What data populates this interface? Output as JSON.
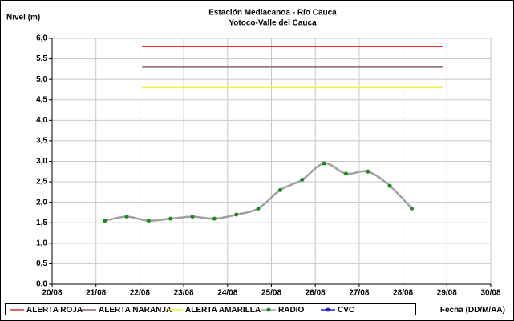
{
  "chart_data": {
    "type": "line",
    "title": "Estación Mediacanoa - Río Cauca",
    "subtitle": "Yotoco-Valle del Cauca",
    "y_label": "Nivel (m)",
    "x_label": "Fecha (DD/M/AA)",
    "xlim": [
      20,
      30
    ],
    "xticks": [
      {
        "value": 20,
        "label": "20/08"
      },
      {
        "value": 21,
        "label": "21/08"
      },
      {
        "value": 22,
        "label": "22/08"
      },
      {
        "value": 23,
        "label": "23/08"
      },
      {
        "value": 24,
        "label": "24/08"
      },
      {
        "value": 25,
        "label": "25/08"
      },
      {
        "value": 26,
        "label": "26/08"
      },
      {
        "value": 27,
        "label": "27/08"
      },
      {
        "value": 28,
        "label": "28/08"
      },
      {
        "value": 29,
        "label": "29/08"
      },
      {
        "value": 30,
        "label": "30/08"
      }
    ],
    "ylim": [
      0,
      6
    ],
    "yticks": [
      {
        "value": 0,
        "label": "0,0"
      },
      {
        "value": 0.5,
        "label": "0,5"
      },
      {
        "value": 1,
        "label": "1,0"
      },
      {
        "value": 1.5,
        "label": "1,5"
      },
      {
        "value": 2,
        "label": "2,0"
      },
      {
        "value": 2.5,
        "label": "2,5"
      },
      {
        "value": 3,
        "label": "3,0"
      },
      {
        "value": 3.5,
        "label": "3,5"
      },
      {
        "value": 4,
        "label": "4,0"
      },
      {
        "value": 4.5,
        "label": "4,5"
      },
      {
        "value": 5,
        "label": "5,0"
      },
      {
        "value": 5.5,
        "label": "5,5"
      },
      {
        "value": 6,
        "label": "6,0"
      }
    ],
    "grid": true,
    "legend": "bottom",
    "series": [
      {
        "name": "ALERTA ROJA",
        "color": "#e03020",
        "x": [
          22.05,
          28.9
        ],
        "values": [
          5.8,
          5.8
        ]
      },
      {
        "name": "ALERTA NARANJA",
        "color": "#8c6464",
        "x": [
          22.05,
          28.9
        ],
        "values": [
          5.3,
          5.3
        ]
      },
      {
        "name": "ALERTA AMARILLA",
        "color": "#f0f040",
        "x": [
          22.05,
          28.9
        ],
        "values": [
          4.8,
          4.8
        ]
      },
      {
        "name": "RADIO",
        "color": "#a0a0a0",
        "marker_color": "#1a8c1a",
        "x": [
          21.2,
          21.7,
          22.2,
          22.7,
          23.2,
          23.7,
          24.2,
          24.7,
          25.2,
          25.7,
          26.2,
          26.7,
          27.2,
          27.7,
          28.2
        ],
        "values": [
          1.55,
          1.65,
          1.55,
          1.6,
          1.65,
          1.6,
          1.7,
          1.85,
          2.3,
          2.55,
          2.95,
          2.7,
          2.75,
          2.4,
          1.85
        ]
      },
      {
        "name": "CVC",
        "color": "#2020c0",
        "marker_color": "#2020c0",
        "x": [],
        "values": []
      }
    ]
  }
}
